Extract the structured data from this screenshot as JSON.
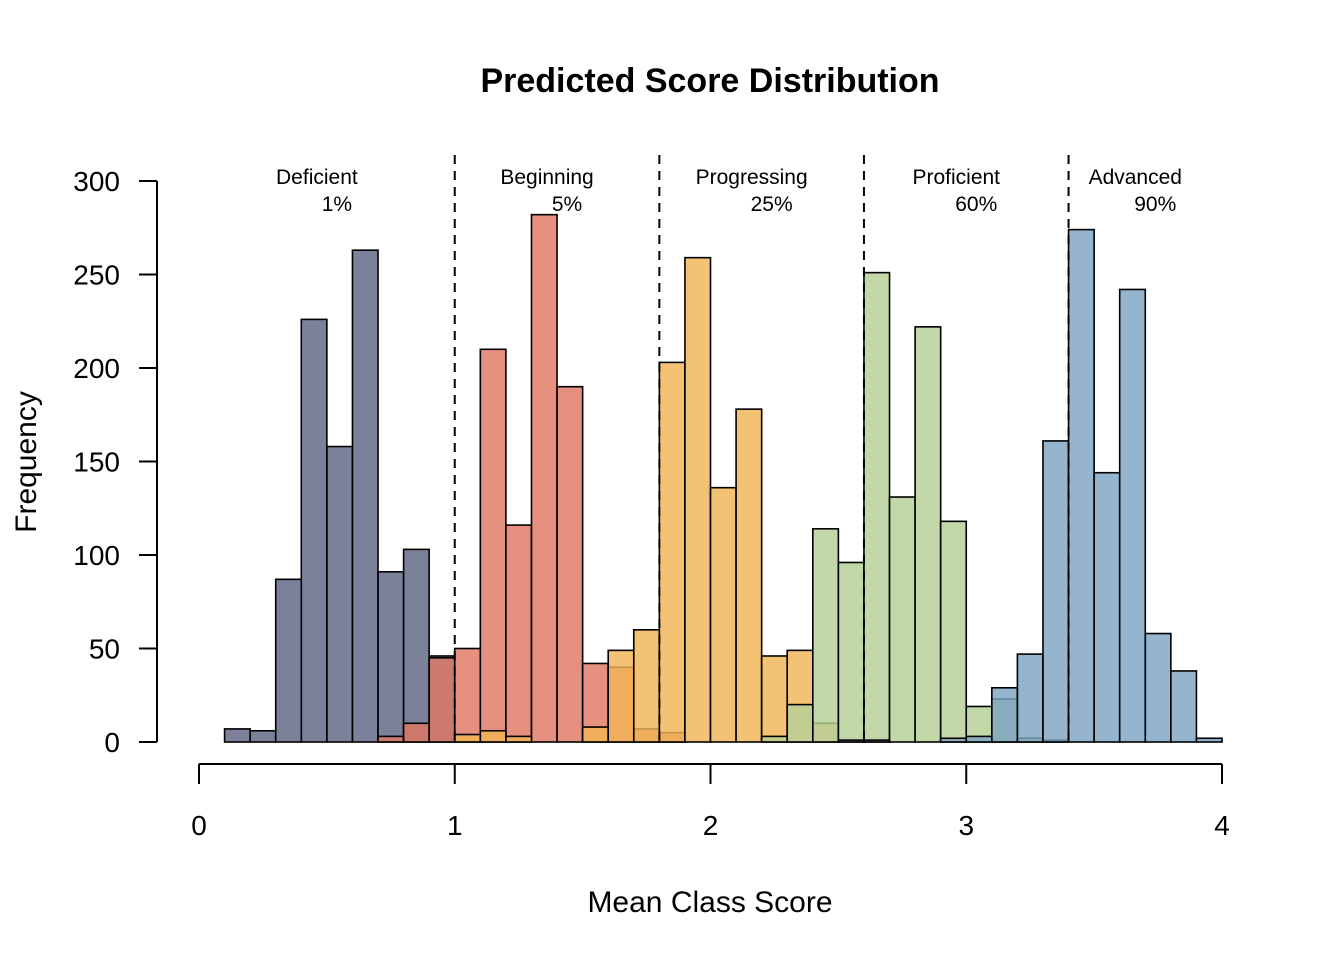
{
  "chart_data": {
    "type": "bar",
    "subtype": "overlaid-histogram",
    "title": "Predicted Score Distribution",
    "xlabel": "Mean Class Score",
    "ylabel": "Frequency",
    "xlim": [
      0,
      4
    ],
    "ylim": [
      0,
      300
    ],
    "x_ticks": [
      0,
      1,
      2,
      3,
      4
    ],
    "y_ticks": [
      0,
      50,
      100,
      150,
      200,
      250,
      300
    ],
    "bin_width": 0.1,
    "grid": false,
    "cutoffs": [
      1.0,
      1.8,
      2.6,
      3.4
    ],
    "bands": [
      {
        "name": "Deficient",
        "percent": "1%",
        "x": 0.5
      },
      {
        "name": "Beginning",
        "percent": "5%",
        "x": 1.4
      },
      {
        "name": "Progressing",
        "percent": "25%",
        "x": 2.2
      },
      {
        "name": "Proficient",
        "percent": "60%",
        "x": 3.0
      },
      {
        "name": "Advanced",
        "percent": "90%",
        "x": 3.7
      }
    ],
    "series": [
      {
        "color": "#5e6582",
        "bins": [
          [
            0.1,
            7
          ],
          [
            0.2,
            6
          ],
          [
            0.3,
            87
          ],
          [
            0.4,
            226
          ],
          [
            0.5,
            158
          ],
          [
            0.6,
            263
          ],
          [
            0.7,
            91
          ],
          [
            0.8,
            103
          ],
          [
            0.9,
            46
          ]
        ]
      },
      {
        "color": "#e07763",
        "bins": [
          [
            0.7,
            3
          ],
          [
            0.8,
            10
          ],
          [
            0.9,
            45
          ],
          [
            1.0,
            50
          ],
          [
            1.1,
            210
          ],
          [
            1.2,
            116
          ],
          [
            1.3,
            282
          ],
          [
            1.4,
            190
          ],
          [
            1.5,
            42
          ],
          [
            1.6,
            40
          ],
          [
            1.7,
            7
          ],
          [
            1.8,
            5
          ]
        ]
      },
      {
        "color": "#f2b456",
        "bins": [
          [
            1.0,
            4
          ],
          [
            1.1,
            6
          ],
          [
            1.2,
            3
          ],
          [
            1.5,
            8
          ],
          [
            1.6,
            49
          ],
          [
            1.7,
            60
          ],
          [
            1.8,
            203
          ],
          [
            1.9,
            259
          ],
          [
            2.0,
            136
          ],
          [
            2.1,
            178
          ],
          [
            2.2,
            46
          ],
          [
            2.3,
            49
          ],
          [
            2.4,
            10
          ]
        ]
      },
      {
        "color": "#b6d096",
        "bins": [
          [
            2.2,
            3
          ],
          [
            2.3,
            20
          ],
          [
            2.4,
            114
          ],
          [
            2.5,
            96
          ],
          [
            2.6,
            251
          ],
          [
            2.7,
            131
          ],
          [
            2.8,
            222
          ],
          [
            2.9,
            118
          ],
          [
            3.0,
            19
          ],
          [
            3.1,
            23
          ],
          [
            3.2,
            2
          ],
          [
            3.3,
            1
          ]
        ]
      },
      {
        "color": "#7ea3c2",
        "bins": [
          [
            2.5,
            1
          ],
          [
            2.6,
            1
          ],
          [
            2.9,
            2
          ],
          [
            3.0,
            3
          ],
          [
            3.1,
            29
          ],
          [
            3.2,
            47
          ],
          [
            3.3,
            161
          ],
          [
            3.4,
            274
          ],
          [
            3.5,
            144
          ],
          [
            3.6,
            242
          ],
          [
            3.7,
            58
          ],
          [
            3.8,
            38
          ],
          [
            3.9,
            2
          ]
        ]
      }
    ]
  }
}
